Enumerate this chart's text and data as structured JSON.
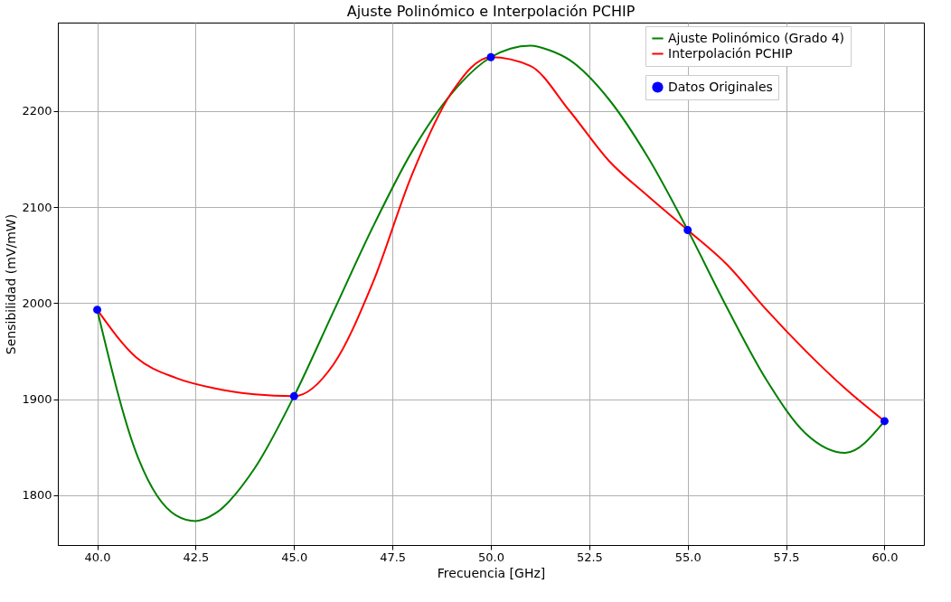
{
  "chart_data": {
    "type": "line",
    "title": "Ajuste Polinómico e Interpolación PCHIP",
    "xlabel": "Frecuencia [GHz]",
    "ylabel": "Sensibilidad (mV/mW)",
    "xlim": [
      39.0,
      61.0
    ],
    "ylim": [
      1748,
      2292
    ],
    "xticks": [
      {
        "value": 40,
        "label": "40.0"
      },
      {
        "value": 42.5,
        "label": "42.5"
      },
      {
        "value": 45,
        "label": "45.0"
      },
      {
        "value": 47.5,
        "label": "47.5"
      },
      {
        "value": 50,
        "label": "50.0"
      },
      {
        "value": 52.5,
        "label": "52.5"
      },
      {
        "value": 55,
        "label": "55.0"
      },
      {
        "value": 57.5,
        "label": "57.5"
      },
      {
        "value": 60,
        "label": "60.0"
      }
    ],
    "yticks": [
      1800,
      1900,
      2000,
      2100,
      2200
    ],
    "grid": true,
    "legend": "top right",
    "series": [
      {
        "name": "Ajuste Polinómico (Grado 4)",
        "color": "#008000",
        "x": [
          40,
          41,
          42,
          42.5,
          43,
          44,
          45,
          46,
          47,
          48,
          49,
          50,
          50.5,
          51,
          51.5,
          52,
          53,
          54,
          55,
          56,
          57,
          58,
          59,
          60
        ],
        "values": [
          1993,
          1843,
          1779,
          1773,
          1781,
          1828,
          1903,
          1991,
          2079,
          2158,
          2218,
          2256,
          2265,
          2268,
          2263,
          2253,
          2212,
          2151,
          2076,
          1995,
          1920,
          1864,
          1844,
          1877
        ]
      },
      {
        "name": "Interpolación PCHIP",
        "color": "#ff0000",
        "x": [
          40,
          41,
          42,
          43,
          44,
          45,
          46,
          47,
          48,
          49,
          50,
          51,
          52,
          53,
          54,
          55,
          56,
          57,
          58,
          59,
          60
        ],
        "values": [
          1993,
          1943,
          1922,
          1911,
          1905,
          1903,
          1936,
          2021,
          2134,
          2219,
          2256,
          2247,
          2200,
          2148,
          2111,
          2076,
          2040,
          1993,
          1950,
          1911,
          1877
        ]
      },
      {
        "name": "Datos Originales",
        "color": "#0000ff",
        "type": "scatter",
        "marker": "circle",
        "x": [
          40,
          45,
          50,
          55,
          60
        ],
        "values": [
          1993,
          1903,
          2256,
          2076,
          1877
        ]
      }
    ]
  }
}
